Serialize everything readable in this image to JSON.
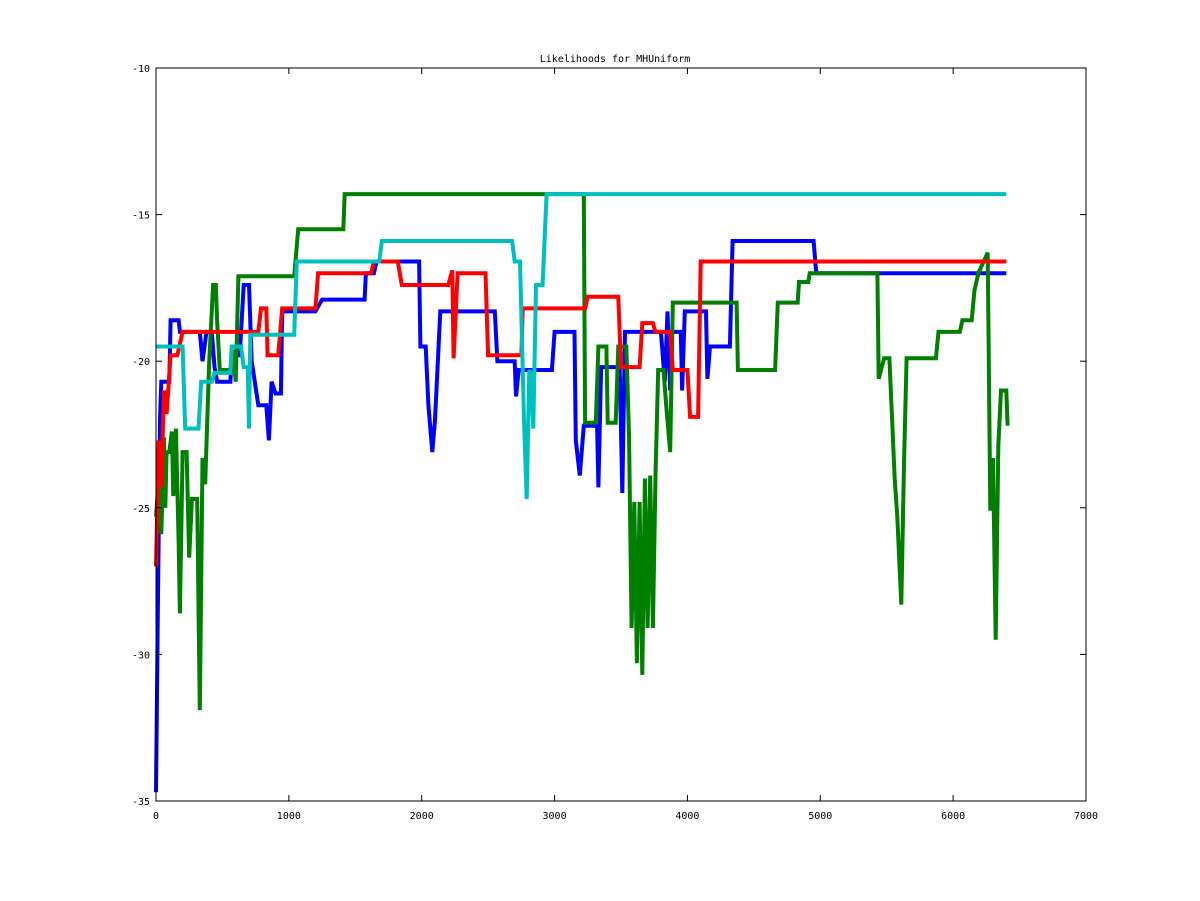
{
  "chart_data": {
    "type": "line",
    "title": "Likelihoods for MHUniform",
    "xlabel": "",
    "ylabel": "",
    "xlim": [
      0,
      7000
    ],
    "ylim": [
      -35,
      -10
    ],
    "xticks": [
      0,
      1000,
      2000,
      3000,
      4000,
      5000,
      6000,
      7000
    ],
    "yticks": [
      -35,
      -30,
      -25,
      -20,
      -15,
      -10
    ],
    "xtick_labels": [
      "0",
      "1000",
      "2000",
      "3000",
      "4000",
      "5000",
      "6000",
      "7000"
    ],
    "ytick_labels": [
      "-35",
      "-30",
      "-25",
      "-20",
      "-15",
      "-10"
    ],
    "grid": false,
    "legend": "none",
    "series": [
      {
        "color": "#0000ff",
        "points": [
          [
            0,
            -34.7
          ],
          [
            15,
            -28
          ],
          [
            30,
            -22
          ],
          [
            40,
            -20.7
          ],
          [
            100,
            -20.7
          ],
          [
            110,
            -18.6
          ],
          [
            170,
            -18.6
          ],
          [
            180,
            -19.0
          ],
          [
            330,
            -19.0
          ],
          [
            350,
            -20.0
          ],
          [
            380,
            -19.0
          ],
          [
            420,
            -19.0
          ],
          [
            440,
            -20.2
          ],
          [
            460,
            -20.7
          ],
          [
            560,
            -20.7
          ],
          [
            570,
            -19.8
          ],
          [
            630,
            -19.8
          ],
          [
            660,
            -17.4
          ],
          [
            700,
            -17.4
          ],
          [
            720,
            -20.0
          ],
          [
            770,
            -21.5
          ],
          [
            830,
            -21.5
          ],
          [
            850,
            -22.7
          ],
          [
            870,
            -20.7
          ],
          [
            900,
            -21.1
          ],
          [
            940,
            -21.1
          ],
          [
            950,
            -18.3
          ],
          [
            1000,
            -18.3
          ],
          [
            1010,
            -18.3
          ],
          [
            1200,
            -18.3
          ],
          [
            1250,
            -17.9
          ],
          [
            1570,
            -17.9
          ],
          [
            1580,
            -17.0
          ],
          [
            1640,
            -17.0
          ],
          [
            1660,
            -16.6
          ],
          [
            1980,
            -16.6
          ],
          [
            1990,
            -19.5
          ],
          [
            2030,
            -19.5
          ],
          [
            2050,
            -21.5
          ],
          [
            2080,
            -23.1
          ],
          [
            2100,
            -22.0
          ],
          [
            2140,
            -18.3
          ],
          [
            2550,
            -18.3
          ],
          [
            2570,
            -20.0
          ],
          [
            2700,
            -20.0
          ],
          [
            2710,
            -21.2
          ],
          [
            2730,
            -20.3
          ],
          [
            2980,
            -20.3
          ],
          [
            3000,
            -19.0
          ],
          [
            3150,
            -19.0
          ],
          [
            3160,
            -22.7
          ],
          [
            3190,
            -23.9
          ],
          [
            3220,
            -22.2
          ],
          [
            3320,
            -22.2
          ],
          [
            3330,
            -24.3
          ],
          [
            3350,
            -20.2
          ],
          [
            3490,
            -20.2
          ],
          [
            3510,
            -24.5
          ],
          [
            3530,
            -19.0
          ],
          [
            3800,
            -19.0
          ],
          [
            3830,
            -20.7
          ],
          [
            3850,
            -18.3
          ],
          [
            3870,
            -21.0
          ],
          [
            3880,
            -19.0
          ],
          [
            3950,
            -19.0
          ],
          [
            3960,
            -21.0
          ],
          [
            3980,
            -18.3
          ],
          [
            4140,
            -18.3
          ],
          [
            4150,
            -20.6
          ],
          [
            4170,
            -19.5
          ],
          [
            4320,
            -19.5
          ],
          [
            4340,
            -15.9
          ],
          [
            4950,
            -15.9
          ],
          [
            4970,
            -17.0
          ],
          [
            6400,
            -17.0
          ]
        ]
      },
      {
        "color": "#007f00",
        "points": [
          [
            0,
            -25.3
          ],
          [
            20,
            -24
          ],
          [
            40,
            -25.9
          ],
          [
            60,
            -22.6
          ],
          [
            70,
            -25.0
          ],
          [
            80,
            -23.1
          ],
          [
            100,
            -23.1
          ],
          [
            120,
            -22.4
          ],
          [
            130,
            -24.6
          ],
          [
            150,
            -22.3
          ],
          [
            170,
            -26.1
          ],
          [
            180,
            -28.6
          ],
          [
            200,
            -23.1
          ],
          [
            230,
            -23.1
          ],
          [
            250,
            -26.7
          ],
          [
            270,
            -24.7
          ],
          [
            310,
            -24.7
          ],
          [
            330,
            -31.9
          ],
          [
            350,
            -23.3
          ],
          [
            370,
            -24.2
          ],
          [
            400,
            -20.1
          ],
          [
            430,
            -17.4
          ],
          [
            450,
            -17.4
          ],
          [
            460,
            -18.6
          ],
          [
            480,
            -20.3
          ],
          [
            560,
            -20.3
          ],
          [
            580,
            -19.6
          ],
          [
            600,
            -20.7
          ],
          [
            620,
            -17.1
          ],
          [
            1040,
            -17.1
          ],
          [
            1070,
            -15.5
          ],
          [
            1410,
            -15.5
          ],
          [
            1420,
            -14.3
          ],
          [
            3220,
            -14.3
          ],
          [
            3230,
            -22.1
          ],
          [
            3310,
            -22.1
          ],
          [
            3330,
            -19.5
          ],
          [
            3390,
            -19.5
          ],
          [
            3400,
            -22.1
          ],
          [
            3460,
            -22.1
          ],
          [
            3480,
            -19.5
          ],
          [
            3540,
            -19.5
          ],
          [
            3560,
            -22.5
          ],
          [
            3580,
            -29.1
          ],
          [
            3600,
            -24.8
          ],
          [
            3620,
            -30.3
          ],
          [
            3640,
            -24.8
          ],
          [
            3660,
            -30.7
          ],
          [
            3680,
            -24.0
          ],
          [
            3700,
            -29.1
          ],
          [
            3720,
            -23.9
          ],
          [
            3740,
            -29.1
          ],
          [
            3760,
            -23.9
          ],
          [
            3780,
            -20.3
          ],
          [
            3820,
            -20.3
          ],
          [
            3840,
            -21.5
          ],
          [
            3870,
            -23.1
          ],
          [
            3890,
            -18.0
          ],
          [
            4370,
            -18.0
          ],
          [
            4380,
            -20.3
          ],
          [
            4660,
            -20.3
          ],
          [
            4680,
            -18.0
          ],
          [
            4830,
            -18.0
          ],
          [
            4840,
            -17.3
          ],
          [
            4910,
            -17.3
          ],
          [
            4920,
            -17.0
          ],
          [
            5430,
            -17.0
          ],
          [
            5440,
            -20.6
          ],
          [
            5480,
            -19.9
          ],
          [
            5520,
            -19.9
          ],
          [
            5560,
            -24.0
          ],
          [
            5580,
            -25.3
          ],
          [
            5610,
            -28.3
          ],
          [
            5630,
            -23.5
          ],
          [
            5650,
            -19.9
          ],
          [
            5870,
            -19.9
          ],
          [
            5890,
            -19.0
          ],
          [
            6050,
            -19.0
          ],
          [
            6070,
            -18.6
          ],
          [
            6140,
            -18.6
          ],
          [
            6160,
            -17.6
          ],
          [
            6190,
            -17.0
          ],
          [
            6260,
            -16.3
          ],
          [
            6280,
            -25.1
          ],
          [
            6300,
            -23.3
          ],
          [
            6320,
            -29.5
          ],
          [
            6340,
            -22.9
          ],
          [
            6360,
            -21.0
          ],
          [
            6400,
            -21.0
          ],
          [
            6410,
            -22.2
          ]
        ]
      },
      {
        "color": "#ff0000",
        "points": [
          [
            0,
            -27
          ],
          [
            20,
            -22.7
          ],
          [
            40,
            -24.3
          ],
          [
            60,
            -21.0
          ],
          [
            80,
            -21.8
          ],
          [
            110,
            -19.8
          ],
          [
            160,
            -19.8
          ],
          [
            200,
            -19.0
          ],
          [
            770,
            -19.0
          ],
          [
            790,
            -18.2
          ],
          [
            830,
            -18.2
          ],
          [
            840,
            -19.8
          ],
          [
            920,
            -19.8
          ],
          [
            950,
            -18.2
          ],
          [
            1000,
            -18.2
          ],
          [
            1010,
            -18.2
          ],
          [
            1200,
            -18.2
          ],
          [
            1220,
            -17.0
          ],
          [
            1620,
            -17.0
          ],
          [
            1640,
            -16.6
          ],
          [
            1820,
            -16.6
          ],
          [
            1850,
            -17.4
          ],
          [
            2200,
            -17.4
          ],
          [
            2230,
            -16.9
          ],
          [
            2240,
            -19.9
          ],
          [
            2270,
            -17.0
          ],
          [
            2480,
            -17.0
          ],
          [
            2500,
            -19.8
          ],
          [
            2750,
            -19.8
          ],
          [
            2760,
            -18.2
          ],
          [
            3230,
            -18.2
          ],
          [
            3250,
            -17.8
          ],
          [
            3480,
            -17.8
          ],
          [
            3500,
            -20.2
          ],
          [
            3640,
            -20.2
          ],
          [
            3660,
            -18.7
          ],
          [
            3740,
            -18.7
          ],
          [
            3760,
            -19.0
          ],
          [
            3870,
            -19.0
          ],
          [
            3890,
            -20.3
          ],
          [
            4000,
            -20.3
          ],
          [
            4020,
            -21.9
          ],
          [
            4080,
            -21.9
          ],
          [
            4100,
            -16.6
          ],
          [
            6400,
            -16.6
          ]
        ]
      },
      {
        "color": "#00bfbf",
        "points": [
          [
            0,
            -19.5
          ],
          [
            200,
            -19.5
          ],
          [
            220,
            -22.3
          ],
          [
            320,
            -22.3
          ],
          [
            340,
            -20.7
          ],
          [
            420,
            -20.7
          ],
          [
            440,
            -20.4
          ],
          [
            560,
            -20.4
          ],
          [
            570,
            -19.5
          ],
          [
            640,
            -19.5
          ],
          [
            660,
            -20.2
          ],
          [
            690,
            -20.2
          ],
          [
            700,
            -22.3
          ],
          [
            710,
            -19.1
          ],
          [
            1040,
            -19.1
          ],
          [
            1060,
            -16.6
          ],
          [
            1680,
            -16.6
          ],
          [
            1700,
            -15.9
          ],
          [
            2680,
            -15.9
          ],
          [
            2700,
            -16.6
          ],
          [
            2740,
            -16.6
          ],
          [
            2770,
            -22.0
          ],
          [
            2790,
            -24.7
          ],
          [
            2810,
            -20.3
          ],
          [
            2820,
            -20.4
          ],
          [
            2840,
            -22.3
          ],
          [
            2860,
            -17.4
          ],
          [
            2910,
            -17.4
          ],
          [
            2940,
            -14.3
          ],
          [
            6400,
            -14.3
          ]
        ]
      }
    ]
  }
}
